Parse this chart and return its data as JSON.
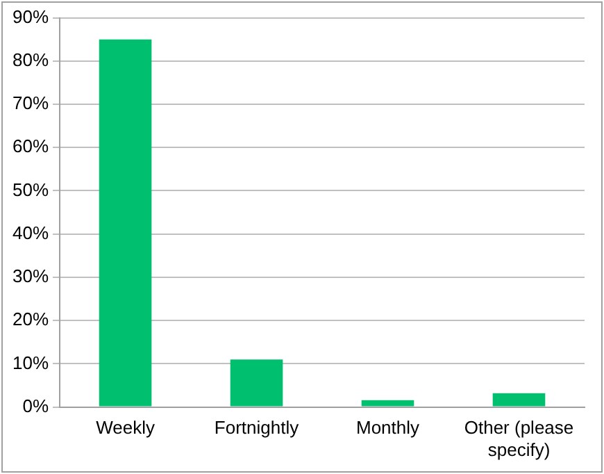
{
  "chart_data": {
    "type": "bar",
    "categories": [
      "Weekly",
      "Fortnightly",
      "Monthly",
      "Other (please specify)"
    ],
    "values": [
      85,
      11,
      1.6,
      3.2
    ],
    "color": "#00c070",
    "ylim": [
      0,
      90
    ],
    "yticks": [
      {
        "value": 0,
        "label": "0%"
      },
      {
        "value": 10,
        "label": "10%"
      },
      {
        "value": 20,
        "label": "20%"
      },
      {
        "value": 30,
        "label": "30%"
      },
      {
        "value": 40,
        "label": "40%"
      },
      {
        "value": 50,
        "label": "50%"
      },
      {
        "value": 60,
        "label": "60%"
      },
      {
        "value": 70,
        "label": "70%"
      },
      {
        "value": 80,
        "label": "80%"
      },
      {
        "value": 90,
        "label": "90%"
      }
    ],
    "grid": "y",
    "legend": false
  }
}
